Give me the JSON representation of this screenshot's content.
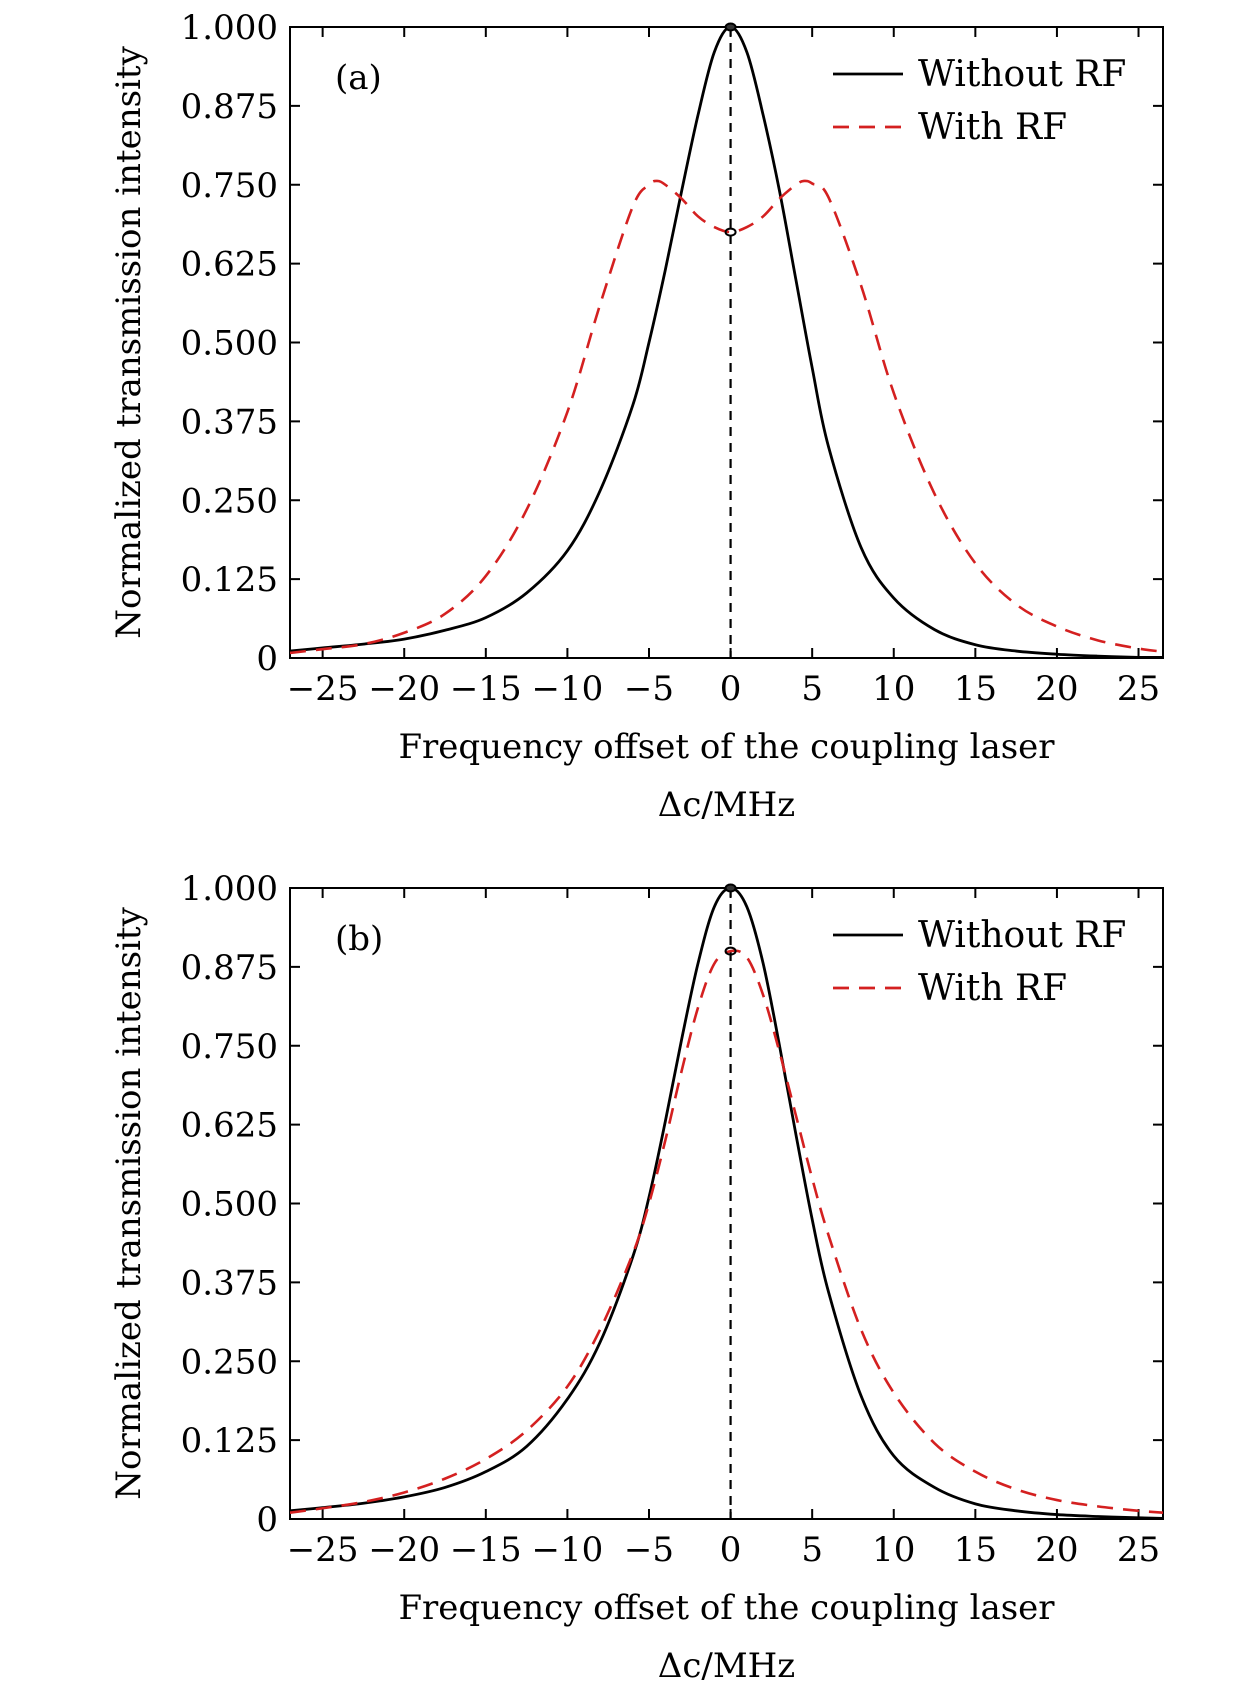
{
  "chart_data": [
    {
      "type": "line",
      "panel_label": "(a)",
      "xlabel": "Frequency offset of the coupling laser",
      "xunit": "Δc/MHz",
      "ylabel": "Normalized transmission intensity",
      "xlim": [
        -27,
        26.5
      ],
      "ylim": [
        0,
        1.0
      ],
      "xticks": [
        -25,
        -20,
        -15,
        -10,
        -5,
        0,
        5,
        10,
        15,
        20,
        25
      ],
      "xtick_labels": [
        "−25",
        "−20",
        "−15",
        "−10",
        "−5",
        "0",
        "5",
        "10",
        "15",
        "20",
        "25"
      ],
      "yticks": [
        0,
        0.125,
        0.25,
        0.375,
        0.5,
        0.625,
        0.75,
        0.875,
        1.0
      ],
      "ytick_labels": [
        "0",
        "0.125",
        "0.250",
        "0.375",
        "0.500",
        "0.625",
        "0.750",
        "0.875",
        "1.000"
      ],
      "grid": false,
      "legend_position": "top-right",
      "markers": [
        {
          "x": 0,
          "y": 1.0
        },
        {
          "x": 0,
          "y": 0.675
        }
      ],
      "vline_x": 0,
      "series": [
        {
          "name": "Without RF",
          "color": "#000000",
          "style": "solid",
          "x": [
            -27,
            -25,
            -22.5,
            -20,
            -17.5,
            -15,
            -12.5,
            -10,
            -8,
            -6,
            -5,
            -4,
            -3,
            -2,
            -1,
            0,
            1,
            2,
            3,
            4,
            5,
            6,
            8,
            10,
            12.5,
            15,
            17.5,
            20,
            22.5,
            25,
            26.5
          ],
          "values": [
            0.011,
            0.016,
            0.022,
            0.03,
            0.044,
            0.064,
            0.103,
            0.17,
            0.265,
            0.4,
            0.5,
            0.615,
            0.74,
            0.86,
            0.96,
            1.0,
            0.96,
            0.86,
            0.74,
            0.6,
            0.46,
            0.335,
            0.175,
            0.095,
            0.045,
            0.021,
            0.011,
            0.006,
            0.003,
            0.001,
            0.001
          ]
        },
        {
          "name": "With RF",
          "color": "#d42020",
          "style": "dashed",
          "x": [
            -27,
            -25,
            -22.5,
            -20,
            -17.5,
            -15,
            -12.5,
            -10,
            -8,
            -6,
            -5,
            -4.5,
            -4,
            -3,
            -2,
            -1,
            0,
            1,
            2,
            3,
            4,
            4.5,
            5,
            6,
            8,
            10,
            12.5,
            15,
            17.5,
            20,
            22.5,
            25,
            26.5
          ],
          "values": [
            0.008,
            0.014,
            0.022,
            0.04,
            0.07,
            0.13,
            0.235,
            0.39,
            0.56,
            0.715,
            0.75,
            0.756,
            0.75,
            0.728,
            0.7,
            0.683,
            0.675,
            0.683,
            0.7,
            0.728,
            0.75,
            0.756,
            0.752,
            0.73,
            0.59,
            0.42,
            0.26,
            0.15,
            0.085,
            0.05,
            0.028,
            0.015,
            0.01
          ]
        }
      ]
    },
    {
      "type": "line",
      "panel_label": "(b)",
      "xlabel": "Frequency offset of the coupling laser",
      "xunit": "Δc/MHz",
      "ylabel": "Normalized transmission intensity",
      "xlim": [
        -27,
        26.5
      ],
      "ylim": [
        0,
        1.0
      ],
      "xticks": [
        -25,
        -20,
        -15,
        -10,
        -5,
        0,
        5,
        10,
        15,
        20,
        25
      ],
      "xtick_labels": [
        "−25",
        "−20",
        "−15",
        "−10",
        "−5",
        "0",
        "5",
        "10",
        "15",
        "20",
        "25"
      ],
      "yticks": [
        0,
        0.125,
        0.25,
        0.375,
        0.5,
        0.625,
        0.75,
        0.875,
        1.0
      ],
      "ytick_labels": [
        "0",
        "0.125",
        "0.250",
        "0.375",
        "0.500",
        "0.625",
        "0.750",
        "0.875",
        "1.000"
      ],
      "grid": false,
      "legend_position": "top-right",
      "markers": [
        {
          "x": 0,
          "y": 1.0
        },
        {
          "x": 0,
          "y": 0.9
        }
      ],
      "vline_x": 0,
      "series": [
        {
          "name": "Without RF",
          "color": "#000000",
          "style": "solid",
          "x": [
            -27,
            -25,
            -22.5,
            -20,
            -17.5,
            -15,
            -12.5,
            -10,
            -8,
            -6,
            -5,
            -4,
            -3,
            -2,
            -1,
            0,
            1,
            2,
            3,
            4,
            5,
            6,
            8,
            10,
            12.5,
            15,
            17.5,
            20,
            22.5,
            25,
            26.5
          ],
          "values": [
            0.013,
            0.018,
            0.025,
            0.035,
            0.05,
            0.075,
            0.115,
            0.19,
            0.28,
            0.415,
            0.51,
            0.63,
            0.76,
            0.88,
            0.97,
            1.0,
            0.97,
            0.88,
            0.75,
            0.61,
            0.475,
            0.36,
            0.195,
            0.1,
            0.05,
            0.024,
            0.013,
            0.007,
            0.004,
            0.002,
            0.001
          ]
        },
        {
          "name": "With RF",
          "color": "#d42020",
          "style": "dashed",
          "x": [
            -27,
            -25,
            -22.5,
            -20,
            -17.5,
            -15,
            -12.5,
            -10,
            -8,
            -6,
            -5,
            -4,
            -3,
            -2,
            -1,
            0,
            1,
            2,
            3,
            4,
            5,
            6,
            8,
            10,
            12.5,
            15,
            17.5,
            20,
            22.5,
            25,
            26.5
          ],
          "values": [
            0.01,
            0.017,
            0.027,
            0.042,
            0.064,
            0.095,
            0.14,
            0.21,
            0.3,
            0.42,
            0.5,
            0.6,
            0.71,
            0.81,
            0.88,
            0.9,
            0.89,
            0.83,
            0.74,
            0.64,
            0.54,
            0.45,
            0.3,
            0.2,
            0.12,
            0.075,
            0.047,
            0.03,
            0.02,
            0.013,
            0.01
          ]
        }
      ]
    }
  ]
}
